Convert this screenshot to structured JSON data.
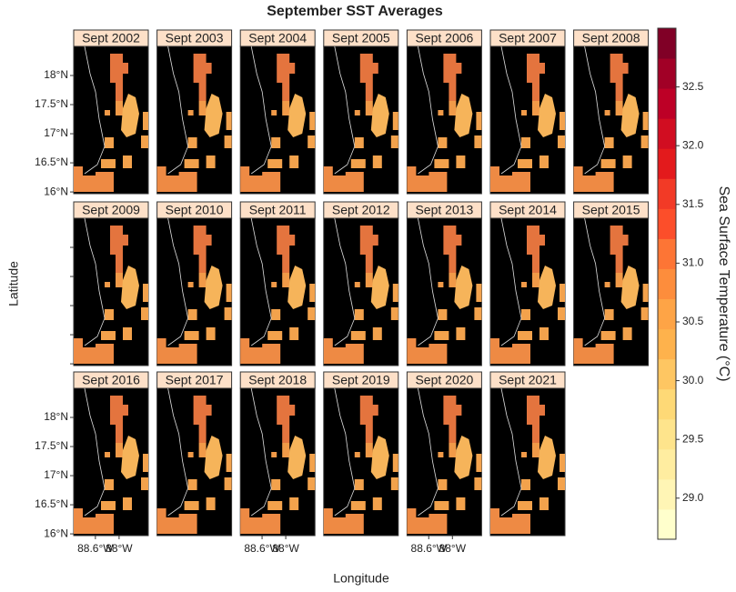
{
  "chart_data": {
    "type": "map-panels",
    "title": "September SST Averages",
    "xlabel": "Longitude",
    "ylabel": "Latitude",
    "panels": [
      "Sept 2002",
      "Sept 2003",
      "Sept 2004",
      "Sept 2005",
      "Sept 2006",
      "Sept 2007",
      "Sept 2008",
      "Sept 2009",
      "Sept 2010",
      "Sept 2011",
      "Sept 2012",
      "Sept 2013",
      "Sept 2014",
      "Sept 2015",
      "Sept 2016",
      "Sept 2017",
      "Sept 2018",
      "Sept 2019",
      "Sept 2020",
      "Sept 2021"
    ],
    "xlim": [
      -89.15,
      -87.26
    ],
    "xticks": [
      {
        "value": -88.6,
        "label": "88.6°W"
      },
      {
        "value": -88,
        "label": "88°W"
      }
    ],
    "ylim": [
      15.97,
      18.5
    ],
    "yticks": [
      {
        "value": 16,
        "label": "16°N"
      },
      {
        "value": 16.5,
        "label": "16.5°N"
      },
      {
        "value": 17,
        "label": "17°N"
      },
      {
        "value": 17.5,
        "label": "17.5°N"
      },
      {
        "value": 18,
        "label": "18°N"
      }
    ],
    "colorbar": {
      "label": "Sea Surface Temperature (°C)",
      "zlim": [
        28.65,
        33.0
      ],
      "ticks": [
        {
          "value": 29,
          "label": "29.0"
        },
        {
          "value": 29.5,
          "label": "29.5"
        },
        {
          "value": 30,
          "label": "30.0"
        },
        {
          "value": 30.5,
          "label": "30.5"
        },
        {
          "value": 31,
          "label": "31.0"
        },
        {
          "value": 31.5,
          "label": "31.5"
        },
        {
          "value": 32,
          "label": "32.0"
        },
        {
          "value": 32.5,
          "label": "32.5"
        }
      ],
      "colors": [
        "#ffffcc",
        "#fff5b5",
        "#ffeda0",
        "#fee48c",
        "#fed976",
        "#fec662",
        "#feb24c",
        "#fea446",
        "#fd8d3c",
        "#fd7535",
        "#fc4e2a",
        "#f23a26",
        "#e31a1c",
        "#d10d21",
        "#bd0026",
        "#a10026",
        "#800026"
      ]
    }
  }
}
